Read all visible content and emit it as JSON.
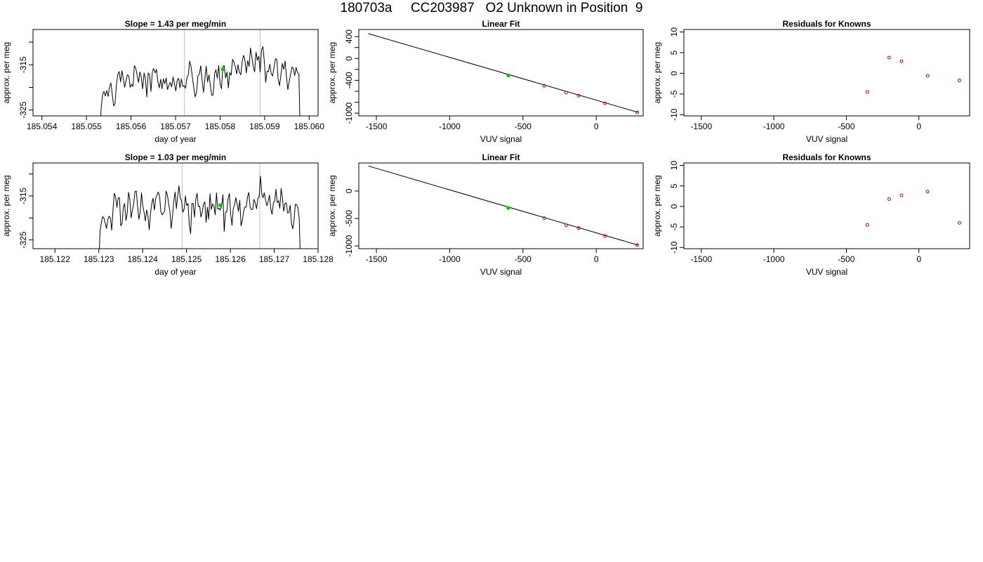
{
  "page": {
    "title": "180703a     CC203987   O2 Unknown in Position  9"
  },
  "colors": {
    "line": "#000000",
    "axis": "#000000",
    "vline": "#bebebe",
    "unknown": "#00cd00",
    "known": "#cd0000"
  },
  "chart_data": [
    {
      "type": "line",
      "id": "trace1",
      "title": "Slope =  1.43  per meg/min",
      "xlabel": "day of year",
      "ylabel": "approx. per meg",
      "xlim": [
        185.0538,
        185.0602
      ],
      "ylim": [
        -326.3,
        -307.2
      ],
      "xticks": [
        185.054,
        185.055,
        185.056,
        185.057,
        185.058,
        185.059,
        185.06
      ],
      "xtick_labels": [
        "185.054",
        "185.055",
        "185.056",
        "185.057",
        "185.058",
        "185.059",
        "185.060"
      ],
      "yticks": [
        -315,
        -325
      ],
      "ytick_labels": [
        "-315",
        "-325"
      ],
      "minor_yticks": [
        -310,
        -320
      ],
      "vlines": [
        185.0572,
        185.0589
      ],
      "marker": {
        "x": 185.05806,
        "y": -316.0
      },
      "series": [
        {
          "x_start": 185.0553,
          "x_end": 185.0598,
          "y": [
            -331,
            -324.5,
            -321.6,
            -320.9,
            -321.9,
            -320.7,
            -322.0,
            -320.0,
            -319.0,
            -321.5,
            -324.1,
            -323.6,
            -319.4,
            -317.1,
            -316.5,
            -318.8,
            -316.3,
            -318.1,
            -320.0,
            -318.4,
            -317.2,
            -317.5,
            -320.0,
            -319.3,
            -319.8,
            -315.2,
            -315.7,
            -317.3,
            -318.9,
            -316.6,
            -317.8,
            -320.3,
            -316.8,
            -318.1,
            -322.1,
            -316.8,
            -317.1,
            -320.9,
            -316.5,
            -315.8,
            -316.8,
            -316.0,
            -318.7,
            -320.1,
            -318.2,
            -320.3,
            -318.1,
            -319.2,
            -317.9,
            -320.5,
            -319.5,
            -318.9,
            -319.9,
            -317.7,
            -319.2,
            -320.8,
            -318.4,
            -318.0,
            -320.1,
            -318.1,
            -319.8,
            -319.6,
            -320.2,
            -317.9,
            -317.2,
            -314.2,
            -315.4,
            -317.9,
            -320.1,
            -322.1,
            -321.0,
            -317.4,
            -317.1,
            -315.2,
            -318.4,
            -321.1,
            -318.0,
            -315.3,
            -318.8,
            -317.2,
            -319.7,
            -321.8,
            -321.6,
            -317.0,
            -316.1,
            -318.0,
            -315.2,
            -319.1,
            -320.3,
            -315.4,
            -315.2,
            -317.9,
            -316.6,
            -320.1,
            -316.7,
            -317.3,
            -313.8,
            -314.4,
            -315.4,
            -317.0,
            -315.0,
            -316.7,
            -317.2,
            -314.2,
            -312.9,
            -314.1,
            -316.8,
            -314.1,
            -315.4,
            -311.3,
            -313.3,
            -315.4,
            -316.6,
            -312.2,
            -314.0,
            -313.1,
            -316.6,
            -311.7,
            -311.0,
            -314.2,
            -318.9,
            -316.4,
            -316.5,
            -314.9,
            -317.0,
            -317.5,
            -315.7,
            -313.7,
            -313.7,
            -318.1,
            -319.6,
            -317.2,
            -314.7,
            -316.0,
            -314.2,
            -317.5,
            -320.5,
            -318.7,
            -317.2,
            -315.5,
            -315.8,
            -317.4,
            -315.6,
            -316.7,
            -317.0,
            -331
          ]
        }
      ]
    },
    {
      "type": "line",
      "id": "fit1",
      "title": "Linear Fit",
      "xlabel": "VUV signal",
      "ylabel": "approx. per meg",
      "xlim": [
        -1620,
        320
      ],
      "ylim": [
        -1050,
        530
      ],
      "xticks": [
        -1500,
        -1000,
        -500,
        0
      ],
      "xtick_labels": [
        "-1500",
        "-1000",
        "-500",
        "0"
      ],
      "yticks": [
        400,
        0,
        -400,
        -1000
      ],
      "ytick_labels": [
        "400",
        "0",
        "-400",
        "-1000"
      ],
      "minor_yticks": [
        200,
        -200,
        -600,
        -800
      ],
      "line": {
        "x": [
          -1555,
          285
        ],
        "y": [
          455,
          -985
        ]
      },
      "unknown": [
        {
          "x": -600,
          "y": -310
        }
      ],
      "knowns": [
        {
          "x": -355,
          "y": -500
        },
        {
          "x": -205,
          "y": -625
        },
        {
          "x": -120,
          "y": -680
        },
        {
          "x": 60,
          "y": -820
        },
        {
          "x": 280,
          "y": -985
        }
      ]
    },
    {
      "type": "scatter",
      "id": "resid1",
      "title": "Residuals for Knowns",
      "xlabel": "VUV signal",
      "ylabel": "approx. per meg",
      "xlim": [
        -1620,
        350
      ],
      "ylim": [
        -10.3,
        10.6
      ],
      "xticks": [
        -1500,
        -1000,
        -500,
        0
      ],
      "xtick_labels": [
        "-1500",
        "-1000",
        "-500",
        "0"
      ],
      "yticks": [
        10,
        5,
        0,
        -5,
        -10
      ],
      "ytick_labels": [
        "10",
        "5",
        "0",
        "-5",
        "-10"
      ],
      "knowns": [
        {
          "x": -355,
          "y": -4.5
        },
        {
          "x": -205,
          "y": 3.8
        },
        {
          "x": -120,
          "y": 2.9
        },
        {
          "x": 60,
          "y": -0.6
        },
        {
          "x": 280,
          "y": -1.7
        }
      ]
    },
    {
      "type": "line",
      "id": "trace2",
      "title": "Slope =  1.03  per meg/min",
      "xlabel": "day of year",
      "ylabel": "approx. per meg",
      "xlim": [
        185.1215,
        185.128
      ],
      "ylim": [
        -327.0,
        -307.5
      ],
      "xticks": [
        185.122,
        185.123,
        185.124,
        185.125,
        185.126,
        185.127,
        185.128
      ],
      "xtick_labels": [
        "185.122",
        "185.123",
        "185.124",
        "185.125",
        "185.126",
        "185.127",
        "185.128"
      ],
      "yticks": [
        -315,
        -325
      ],
      "ytick_labels": [
        "-315",
        "-325"
      ],
      "minor_yticks": [
        -310,
        -320
      ],
      "vlines": [
        185.1249,
        185.12667
      ],
      "marker": {
        "x": 185.12577,
        "y": -317.1
      },
      "series": [
        {
          "x_start": 185.123,
          "x_end": 185.1276,
          "y": [
            -331,
            -323.0,
            -321.0,
            -319.7,
            -320.1,
            -321.2,
            -322.4,
            -320.4,
            -319.6,
            -320.1,
            -322.8,
            -318.0,
            -314.4,
            -315.1,
            -317.6,
            -315.5,
            -315.4,
            -321.8,
            -321.3,
            -317.6,
            -316.7,
            -320.6,
            -318.8,
            -314.2,
            -315.8,
            -320.0,
            -318.2,
            -316.8,
            -314.0,
            -313.9,
            -317.2,
            -320.3,
            -318.8,
            -314.3,
            -317.2,
            -318.7,
            -320.7,
            -318.2,
            -319.5,
            -322.7,
            -318.9,
            -316.7,
            -315.5,
            -318.2,
            -315.6,
            -314.8,
            -314.1,
            -315.1,
            -318.6,
            -319.3,
            -318.9,
            -318.4,
            -313.9,
            -314.7,
            -316.8,
            -318.5,
            -322.4,
            -319.6,
            -316.2,
            -314.1,
            -317.9,
            -315.1,
            -312.7,
            -315.5,
            -316.1,
            -318.7,
            -318.0,
            -315.0,
            -317.2,
            -316.7,
            -321.5,
            -323.6,
            -316.7,
            -316.7,
            -319.8,
            -315.8,
            -314.4,
            -317.4,
            -317.3,
            -319.8,
            -318.7,
            -316.8,
            -316.4,
            -321.0,
            -317.6,
            -320.3,
            -314.5,
            -318.1,
            -316.8,
            -317.3,
            -319.3,
            -314.3,
            -318.0,
            -317.8,
            -318.2,
            -317.3,
            -314.7,
            -323.1,
            -318.7,
            -318.6,
            -315.6,
            -314.4,
            -319.2,
            -321.7,
            -317.9,
            -317.0,
            -315.4,
            -316.9,
            -318.5,
            -316.0,
            -321.8,
            -320.6,
            -318.6,
            -317.5,
            -317.5,
            -315.2,
            -314.2,
            -317.5,
            -318.1,
            -318.1,
            -315.8,
            -316.6,
            -317.9,
            -315.6,
            -315.2,
            -310.5,
            -314.5,
            -315.4,
            -314.3,
            -316.0,
            -317.2,
            -316.2,
            -314.8,
            -318.0,
            -319.2,
            -316.6,
            -316.2,
            -313.5,
            -316.5,
            -316.1,
            -317.8,
            -313.3,
            -315.4,
            -318.5,
            -316.7,
            -316.6,
            -318.9,
            -318.8,
            -317.1,
            -321.2,
            -322.5,
            -320.5,
            -316.9,
            -317.0,
            -317.7,
            -320.2,
            -331
          ]
        }
      ]
    },
    {
      "type": "line",
      "id": "fit2",
      "title": "Linear Fit",
      "xlabel": "VUV signal",
      "ylabel": "approx. per meg",
      "xlim": [
        -1620,
        320
      ],
      "ylim": [
        -1050,
        510
      ],
      "xticks": [
        -1500,
        -1000,
        -500,
        0
      ],
      "xtick_labels": [
        "-1500",
        "-1000",
        "-500",
        "0"
      ],
      "yticks": [
        0,
        -500,
        -1000
      ],
      "ytick_labels": [
        "0",
        "-500",
        "-1000"
      ],
      "line": {
        "x": [
          -1555,
          285
        ],
        "y": [
          455,
          -985
        ]
      },
      "unknown": [
        {
          "x": -600,
          "y": -310
        }
      ],
      "knowns": [
        {
          "x": -355,
          "y": -495
        },
        {
          "x": -205,
          "y": -625
        },
        {
          "x": -120,
          "y": -675
        },
        {
          "x": 60,
          "y": -820
        },
        {
          "x": 280,
          "y": -985
        }
      ]
    },
    {
      "type": "scatter",
      "id": "resid2",
      "title": "Residuals for Knowns",
      "xlabel": "VUV signal",
      "ylabel": "approx. per meg",
      "xlim": [
        -1620,
        350
      ],
      "ylim": [
        -10.3,
        10.6
      ],
      "xticks": [
        -1500,
        -1000,
        -500,
        0
      ],
      "xtick_labels": [
        "-1500",
        "-1000",
        "-500",
        "0"
      ],
      "yticks": [
        10,
        5,
        0,
        -5,
        -10
      ],
      "ytick_labels": [
        "10",
        "5",
        "0",
        "-5",
        "-10"
      ],
      "knowns": [
        {
          "x": -355,
          "y": -4.5
        },
        {
          "x": -205,
          "y": 1.8
        },
        {
          "x": -120,
          "y": 2.7
        },
        {
          "x": 60,
          "y": 3.6
        },
        {
          "x": 280,
          "y": -4.0
        }
      ]
    }
  ]
}
